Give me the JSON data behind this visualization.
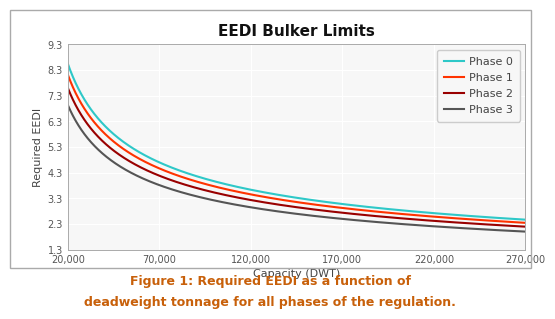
{
  "title": "EEDI Bulker Limits",
  "xlabel": "Capacity (DWT)",
  "ylabel": "Required EEDI",
  "caption_line1": "Figure 1: Required EEDI as a function of",
  "caption_line2": "deadweight tonnage for all phases of the regulation.",
  "caption_color": "#c8600a",
  "xmin": 20000,
  "xmax": 270000,
  "xticks": [
    20000,
    70000,
    120000,
    170000,
    220000,
    270000
  ],
  "xtick_labels": [
    "20,000",
    "70,000",
    "120,000",
    "170,000",
    "220,000",
    "270,000"
  ],
  "ymin": 1.3,
  "ymax": 9.3,
  "yticks": [
    1.3,
    2.3,
    3.3,
    4.3,
    5.3,
    6.3,
    7.3,
    8.3,
    9.3
  ],
  "phases": [
    {
      "label": "Phase 0",
      "color": "#2ec8c8",
      "a": 961.79,
      "c": -0.477,
      "lw": 1.5
    },
    {
      "label": "Phase 1",
      "color": "#ff3300",
      "a": 913.7,
      "c": -0.477,
      "lw": 1.5
    },
    {
      "label": "Phase 2",
      "color": "#990000",
      "a": 855.61,
      "c": -0.477,
      "lw": 1.5
    },
    {
      "label": "Phase 3",
      "color": "#555555",
      "a": 780.64,
      "c": -0.477,
      "lw": 1.5
    }
  ],
  "bg_color": "#ffffff",
  "plot_bg_color": "#f7f7f7",
  "grid_color": "#ffffff",
  "border_color": "#aaaaaa",
  "title_fontsize": 11,
  "axis_label_fontsize": 8,
  "tick_fontsize": 7,
  "legend_fontsize": 8,
  "caption_fontsize": 9
}
